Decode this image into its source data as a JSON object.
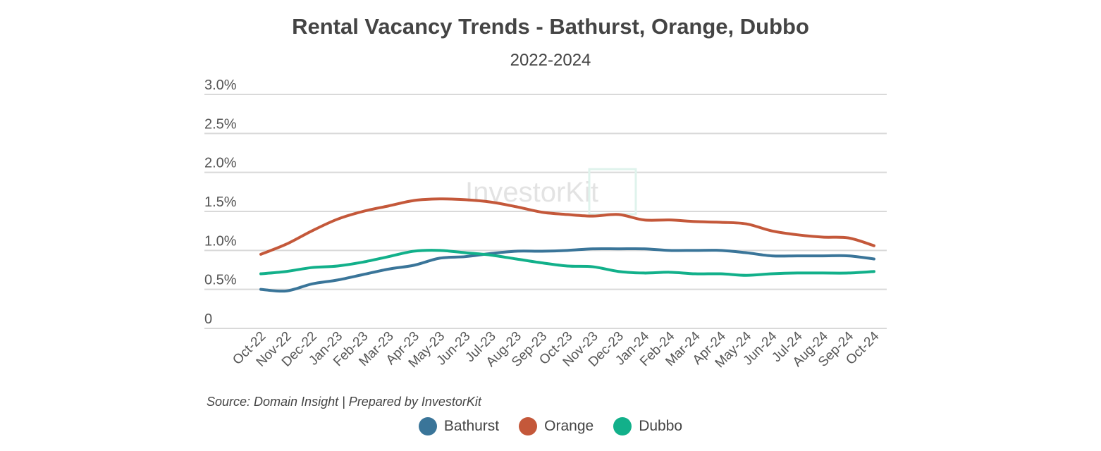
{
  "chart_data": {
    "type": "line",
    "title": "Rental Vacancy Trends - Bathurst, Orange, Dubbo",
    "subtitle": "2022-2024",
    "source": "Source: Domain Insight | Prepared by InvestorKit",
    "watermark": "InvestorKit",
    "xlabel": "",
    "ylabel": "",
    "ylim": [
      0,
      3.0
    ],
    "yticks": [
      0,
      0.5,
      1.0,
      1.5,
      2.0,
      2.5,
      3.0
    ],
    "ytick_labels": [
      "0",
      "0.5%",
      "1.0%",
      "1.5%",
      "2.0%",
      "2.5%",
      "3.0%"
    ],
    "grid": true,
    "legend_position": "bottom",
    "categories": [
      "Oct-22",
      "Nov-22",
      "Dec-22",
      "Jan-23",
      "Feb-23",
      "Mar-23",
      "Apr-23",
      "May-23",
      "Jun-23",
      "Jul-23",
      "Aug-23",
      "Sep-23",
      "Oct-23",
      "Nov-23",
      "Dec-23",
      "Jan-24",
      "Feb-24",
      "Mar-24",
      "Apr-24",
      "May-24",
      "Jun-24",
      "Jul-24",
      "Aug-24",
      "Sep-24",
      "Oct-24"
    ],
    "series": [
      {
        "name": "Bathurst",
        "color": "#3a7599",
        "values": [
          0.5,
          0.48,
          0.57,
          0.62,
          0.69,
          0.76,
          0.81,
          0.9,
          0.92,
          0.96,
          0.99,
          0.99,
          1.0,
          1.02,
          1.02,
          1.02,
          1.0,
          1.0,
          1.0,
          0.97,
          0.93,
          0.93,
          0.93,
          0.93,
          0.89
        ]
      },
      {
        "name": "Orange",
        "color": "#c4583a",
        "values": [
          0.95,
          1.08,
          1.25,
          1.4,
          1.5,
          1.57,
          1.64,
          1.66,
          1.65,
          1.62,
          1.56,
          1.49,
          1.46,
          1.44,
          1.46,
          1.39,
          1.39,
          1.37,
          1.36,
          1.34,
          1.25,
          1.2,
          1.17,
          1.16,
          1.06
        ]
      },
      {
        "name": "Dubbo",
        "color": "#12b08a",
        "values": [
          0.7,
          0.73,
          0.78,
          0.8,
          0.85,
          0.92,
          0.99,
          1.0,
          0.97,
          0.94,
          0.89,
          0.84,
          0.8,
          0.79,
          0.73,
          0.71,
          0.72,
          0.7,
          0.7,
          0.68,
          0.7,
          0.71,
          0.71,
          0.71,
          0.73
        ]
      }
    ]
  }
}
